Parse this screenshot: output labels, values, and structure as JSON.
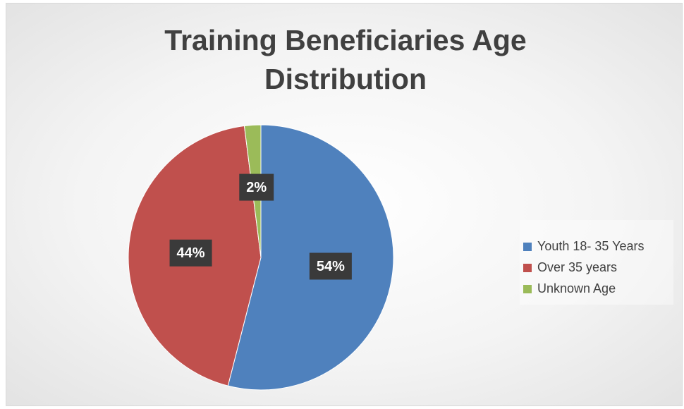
{
  "chart_data": {
    "type": "pie",
    "title": "Training Beneficiaries Age Distribution",
    "categories": [
      "Youth 18- 35 Years",
      "Over 35 years",
      "Unknown Age"
    ],
    "values": [
      54,
      44,
      2
    ],
    "value_labels": [
      "54%",
      "44%",
      "2%"
    ],
    "colors": [
      "#4f81bd",
      "#c0504d",
      "#9bbb59"
    ],
    "legend": "right"
  }
}
